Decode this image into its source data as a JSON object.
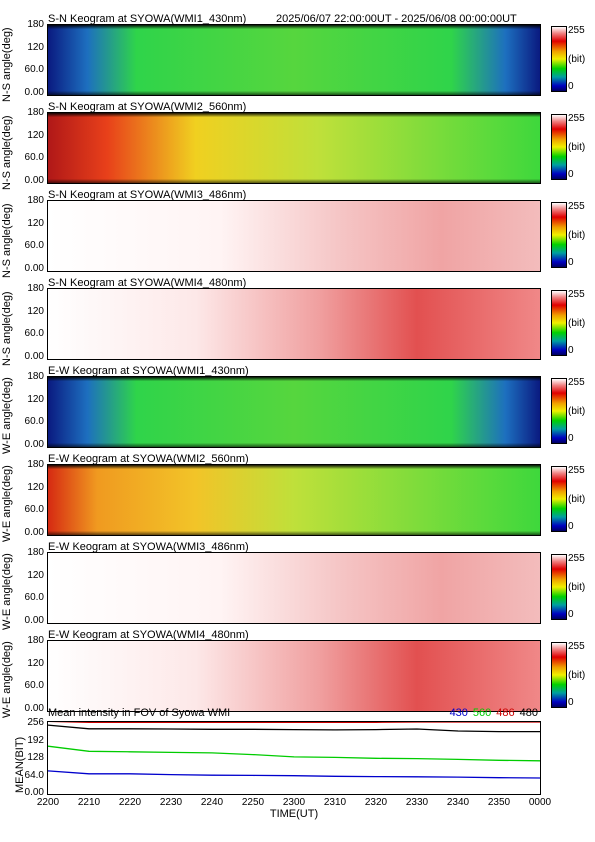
{
  "header": {
    "first_title": "S-N Keogram at SYOWA(WMI1_430nm)",
    "time_range": "2025/06/07 22:00:00UT - 2025/06/08 00:00:00UT"
  },
  "colorbar": {
    "max": "255",
    "unit": "(bit)",
    "min": "0"
  },
  "keograms": [
    {
      "title": "S-N Keogram at SYOWA(WMI1_430nm)",
      "ylabel": "N-S angle(deg)",
      "yticks": [
        "180",
        "120",
        "60.0",
        "0.00"
      ],
      "style": "green"
    },
    {
      "title": "S-N Keogram at SYOWA(WMI2_560nm)",
      "ylabel": "N-S angle(deg)",
      "yticks": [
        "180",
        "120",
        "60.0",
        "0.00"
      ],
      "style": "redyellow"
    },
    {
      "title": "S-N Keogram at SYOWA(WMI3_486nm)",
      "ylabel": "N-S angle(deg)",
      "yticks": [
        "180",
        "120",
        "60.0",
        "0.00"
      ],
      "style": "white"
    },
    {
      "title": "S-N Keogram at SYOWA(WMI4_480nm)",
      "ylabel": "N-S angle(deg)",
      "yticks": [
        "180",
        "120",
        "60.0",
        "0.00"
      ],
      "style": "whiteStrong"
    },
    {
      "title": "E-W Keogram at SYOWA(WMI1_430nm)",
      "ylabel": "W-E angle(deg)",
      "yticks": [
        "180",
        "120",
        "60.0",
        "0.00"
      ],
      "style": "green"
    },
    {
      "title": "E-W Keogram at SYOWA(WMI2_560nm)",
      "ylabel": "W-E angle(deg)",
      "yticks": [
        "180",
        "120",
        "60.0",
        "0.00"
      ],
      "style": "orange"
    },
    {
      "title": "E-W Keogram at SYOWA(WMI3_486nm)",
      "ylabel": "W-E angle(deg)",
      "yticks": [
        "180",
        "120",
        "60.0",
        "0.00"
      ],
      "style": "white"
    },
    {
      "title": "E-W Keogram at SYOWA(WMI4_480nm)",
      "ylabel": "W-E angle(deg)",
      "yticks": [
        "180",
        "120",
        "60.0",
        "0.00"
      ],
      "style": "whiteStrong"
    }
  ],
  "colors": {
    "c430": "#0000cc",
    "c560": "#00cc00",
    "c486": "#cc0000",
    "c480": "#000000"
  },
  "chart_data": {
    "type": "line",
    "title": "Mean intensity in FOV of Syowa WMI",
    "ylabel": "MEAN(BIT)",
    "xlabel": "TIME(UT)",
    "yticks": [
      "256",
      "192",
      "128",
      "64.0",
      "0.00"
    ],
    "ylim": [
      0,
      256
    ],
    "xticks": [
      "2200",
      "2210",
      "2220",
      "2230",
      "2240",
      "2250",
      "2300",
      "2310",
      "2320",
      "2330",
      "2340",
      "2350",
      "0000"
    ],
    "x": [
      0,
      10,
      20,
      30,
      40,
      50,
      60,
      70,
      80,
      90,
      100,
      110,
      120
    ],
    "series": [
      {
        "name": "430",
        "color": "#0000cc",
        "values": [
          82,
          72,
          72,
          69,
          67,
          66,
          65,
          63,
          62,
          61,
          60,
          58,
          57
        ]
      },
      {
        "name": "560",
        "color": "#00cc00",
        "values": [
          170,
          152,
          150,
          148,
          146,
          140,
          132,
          130,
          127,
          126,
          123,
          120,
          118
        ]
      },
      {
        "name": "486",
        "color": "#cc0000",
        "values": [
          258,
          255,
          255,
          255,
          255,
          255,
          255,
          255,
          255,
          256,
          256,
          256,
          256
        ]
      },
      {
        "name": "480",
        "color": "#000000",
        "values": [
          245,
          232,
          232,
          231,
          230,
          230,
          229,
          228,
          229,
          231,
          224,
          222,
          222
        ]
      }
    ]
  }
}
